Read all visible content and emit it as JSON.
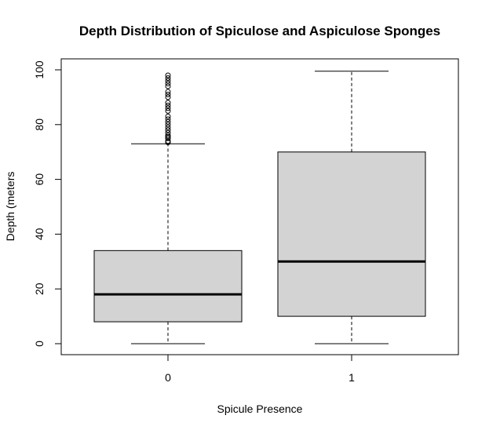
{
  "chart_data": {
    "type": "boxplot",
    "title": "Depth Distribution of Spiculose and Aspiculose Sponges",
    "xlabel": "Spicule Presence",
    "ylabel": "Depth (meters",
    "ylim": [
      0,
      100
    ],
    "yticks": [
      0,
      20,
      40,
      60,
      80,
      100
    ],
    "categories": [
      "0",
      "1"
    ],
    "box_fill": "#d3d3d3",
    "series": [
      {
        "category": "0",
        "whisker_low": 0,
        "q1": 8,
        "median": 18,
        "q3": 34,
        "whisker_high": 73,
        "outliers": [
          73.5,
          74,
          75,
          75.5,
          76,
          77,
          78,
          79,
          80,
          81,
          82,
          83,
          85,
          86,
          87,
          88,
          90,
          91,
          92,
          94,
          95,
          96,
          97,
          98
        ]
      },
      {
        "category": "1",
        "whisker_low": 0,
        "q1": 10,
        "median": 30,
        "q3": 70,
        "whisker_high": 99.5,
        "outliers": []
      }
    ]
  }
}
